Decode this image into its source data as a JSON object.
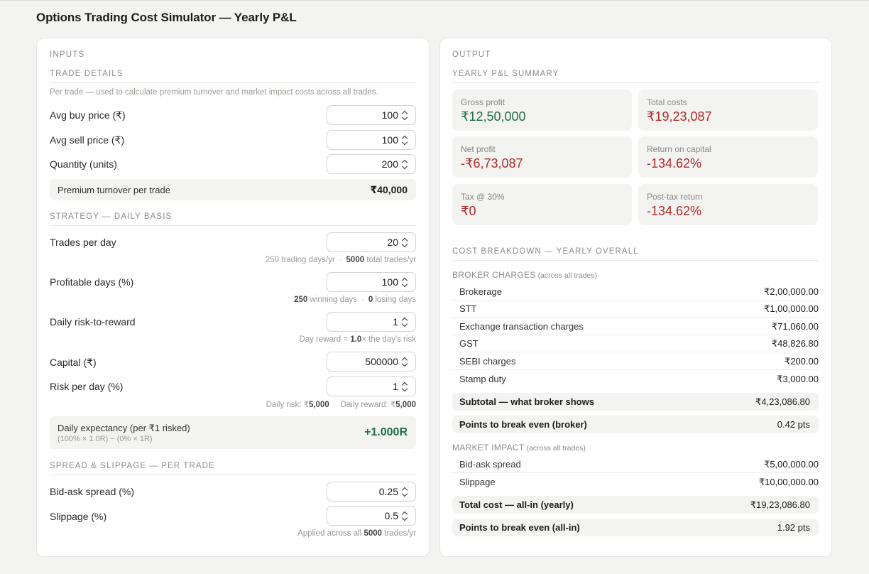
{
  "page": {
    "title": "Options Trading Cost Simulator — Yearly P&L"
  },
  "inputs": {
    "panel_label": "INPUTS",
    "trade_details": {
      "heading": "TRADE DETAILS",
      "note": "Per trade — used to calculate premium turnover and market impact costs across all trades.",
      "fields": [
        {
          "label": "Avg buy price (₹)",
          "value": "100"
        },
        {
          "label": "Avg sell price (₹)",
          "value": "100"
        },
        {
          "label": "Quantity (units)",
          "value": "200"
        }
      ],
      "turnover_label": "Premium turnover per trade",
      "turnover_value": "₹40,000"
    },
    "strategy": {
      "heading": "STRATEGY — DAILY BASIS",
      "trades_per_day": {
        "label": "Trades per day",
        "value": "20"
      },
      "trades_hint": {
        "a": "250 trading days/yr",
        "sep": "·",
        "b_num": "5000",
        "b_text": "total trades/yr"
      },
      "profitable_days": {
        "label": "Profitable days (%)",
        "value": "100"
      },
      "profitable_hint": {
        "a_num": "250",
        "a_text": "winning days",
        "sep": "·",
        "b_num": "0",
        "b_text": "losing days"
      },
      "risk_reward": {
        "label": "Daily risk-to-reward",
        "value": "1"
      },
      "rr_hint": {
        "a": "Day reward =",
        "b_num": "1.0",
        "c": "× the day's risk"
      },
      "capital": {
        "label": "Capital (₹)",
        "value": "500000"
      },
      "risk_per_day": {
        "label": "Risk per day (%)",
        "value": "1"
      },
      "risk_hint": {
        "a": "Daily risk: ₹",
        "a_num": "5,000",
        "sep": "·",
        "b": "Daily reward: ₹",
        "b_num": "5,000"
      },
      "expectancy_label": "Daily expectancy (per ₹1 risked)",
      "expectancy_formula": "(100% × 1.0R) − (0% × 1R)",
      "expectancy_value": "+1.000R"
    },
    "spread": {
      "heading": "SPREAD & SLIPPAGE — PER TRADE",
      "bid_ask": {
        "label": "Bid-ask spread (%)",
        "value": "0.25"
      },
      "slippage": {
        "label": "Slippage (%)",
        "value": "0.5"
      },
      "hint": {
        "a": "Applied across all",
        "b_num": "5000",
        "c": "trades/yr"
      }
    }
  },
  "output": {
    "panel_label": "OUTPUT",
    "summary_heading": "YEARLY P&L SUMMARY",
    "cards": [
      {
        "label": "Gross profit",
        "value": "₹12,50,000"
      },
      {
        "label": "Total costs",
        "value": "₹19,23,087"
      },
      {
        "label": "Net profit",
        "value": "-₹6,73,087"
      },
      {
        "label": "Return on capital",
        "value": "-134.62%"
      },
      {
        "label": "Tax @ 30%",
        "value": "₹0"
      },
      {
        "label": "Post-tax return",
        "value": "-134.62%"
      }
    ],
    "breakdown_heading": "COST BREAKDOWN — YEARLY OVERALL",
    "broker_label": "BROKER CHARGES",
    "broker_sub": "(across all trades)",
    "broker_rows": [
      {
        "label": "Brokerage",
        "value": "₹2,00,000.00"
      },
      {
        "label": "STT",
        "value": "₹1,00,000.00"
      },
      {
        "label": "Exchange transaction charges",
        "value": "₹71,060.00"
      },
      {
        "label": "GST",
        "value": "₹48,826.80"
      },
      {
        "label": "SEBI charges",
        "value": "₹200.00"
      },
      {
        "label": "Stamp duty",
        "value": "₹3,000.00"
      }
    ],
    "broker_subtotal": {
      "label": "Subtotal — what broker shows",
      "value": "₹4,23,086.80"
    },
    "broker_breakeven": {
      "label": "Points to break even (broker)",
      "value": "0.42 pts"
    },
    "market_label": "MARKET IMPACT",
    "market_sub": "(across all trades)",
    "market_rows": [
      {
        "label": "Bid-ask spread",
        "value": "₹5,00,000.00"
      },
      {
        "label": "Slippage",
        "value": "₹10,00,000.00"
      }
    ],
    "total_cost": {
      "label": "Total cost — all-in (yearly)",
      "value": "₹19,23,086.80"
    },
    "allin_breakeven": {
      "label": "Points to break even (all-in)",
      "value": "1.92 pts"
    }
  }
}
